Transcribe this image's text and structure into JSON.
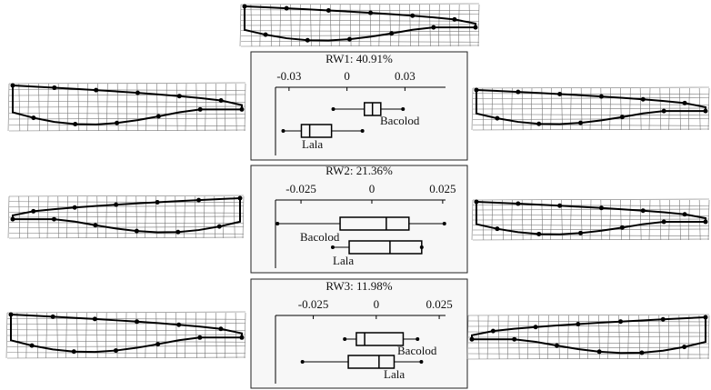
{
  "chart_data": [
    {
      "type": "box",
      "title": "RW1: 40.91%",
      "categories": [
        "Bacolod",
        "Lala"
      ],
      "boxes": [
        {
          "min": -0.0071,
          "q1": 0.009,
          "median": 0.0132,
          "q3": 0.0175,
          "max": 0.029
        },
        {
          "min": -0.033,
          "q1": -0.0236,
          "median": -0.0193,
          "q3": -0.008,
          "max": 0.008
        }
      ],
      "xlim": [
        -0.037,
        0.051
      ],
      "xticks": [
        -0.03,
        0,
        0.03
      ]
    },
    {
      "type": "box",
      "title": "RW2: 21.36%",
      "categories": [
        "Bacolod",
        "Lala"
      ],
      "boxes": [
        {
          "min": -0.0333,
          "q1": -0.0112,
          "median": 0.0051,
          "q3": 0.0131,
          "max": 0.0256
        },
        {
          "min": -0.0138,
          "q1": -0.008,
          "median": 0.0064,
          "q3": 0.0176,
          "max": 0.0176
        }
      ],
      "xlim": [
        -0.034,
        0.026
      ],
      "xticks": [
        -0.025,
        0,
        0.025
      ]
    },
    {
      "type": "box",
      "title": "RW3: 11.98%",
      "categories": [
        "Bacolod",
        "Lala"
      ],
      "boxes": [
        {
          "min": -0.0125,
          "q1": -0.0079,
          "median": -0.0046,
          "q3": 0.0107,
          "max": 0.0164
        },
        {
          "min": -0.0293,
          "q1": -0.0111,
          "median": 0.0011,
          "q3": 0.0071,
          "max": 0.0179
        }
      ],
      "xlim": [
        -0.04,
        0.0275
      ],
      "xticks": [
        -0.025,
        0,
        0.025
      ]
    }
  ]
}
